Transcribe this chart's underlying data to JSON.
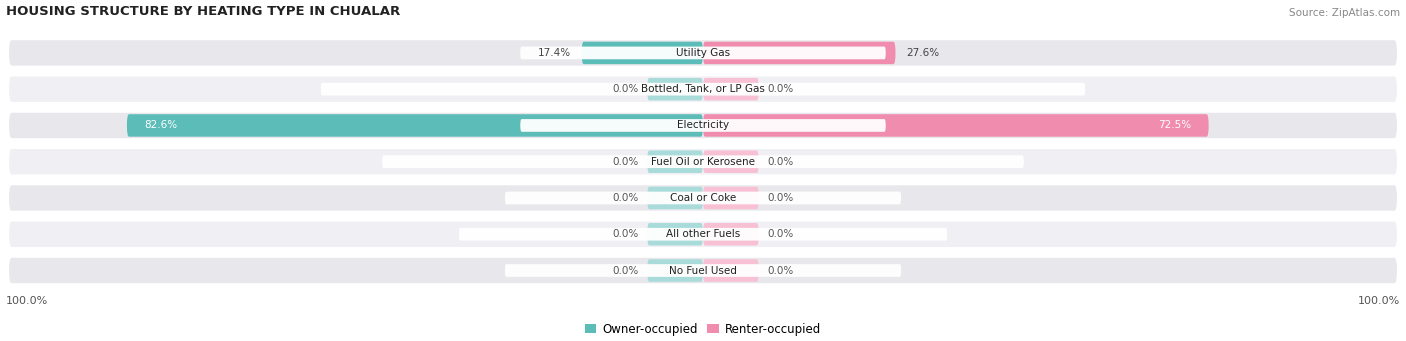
{
  "title": "HOUSING STRUCTURE BY HEATING TYPE IN CHUALAR",
  "source": "Source: ZipAtlas.com",
  "categories": [
    "Utility Gas",
    "Bottled, Tank, or LP Gas",
    "Electricity",
    "Fuel Oil or Kerosene",
    "Coal or Coke",
    "All other Fuels",
    "No Fuel Used"
  ],
  "owner_values": [
    17.4,
    0.0,
    82.6,
    0.0,
    0.0,
    0.0,
    0.0
  ],
  "renter_values": [
    27.6,
    0.0,
    72.5,
    0.0,
    0.0,
    0.0,
    0.0
  ],
  "owner_color": "#5bbcb8",
  "renter_color": "#f08cad",
  "owner_color_light": "#a8dbd9",
  "renter_color_light": "#f7c0d3",
  "owner_label": "Owner-occupied",
  "renter_label": "Renter-occupied",
  "row_color_a": "#e8e8ec",
  "row_color_b": "#f0f0f4",
  "max_val": 100.0,
  "stub_val": 8.0,
  "figsize": [
    14.06,
    3.41
  ],
  "dpi": 100,
  "axis_label": "100.0%"
}
